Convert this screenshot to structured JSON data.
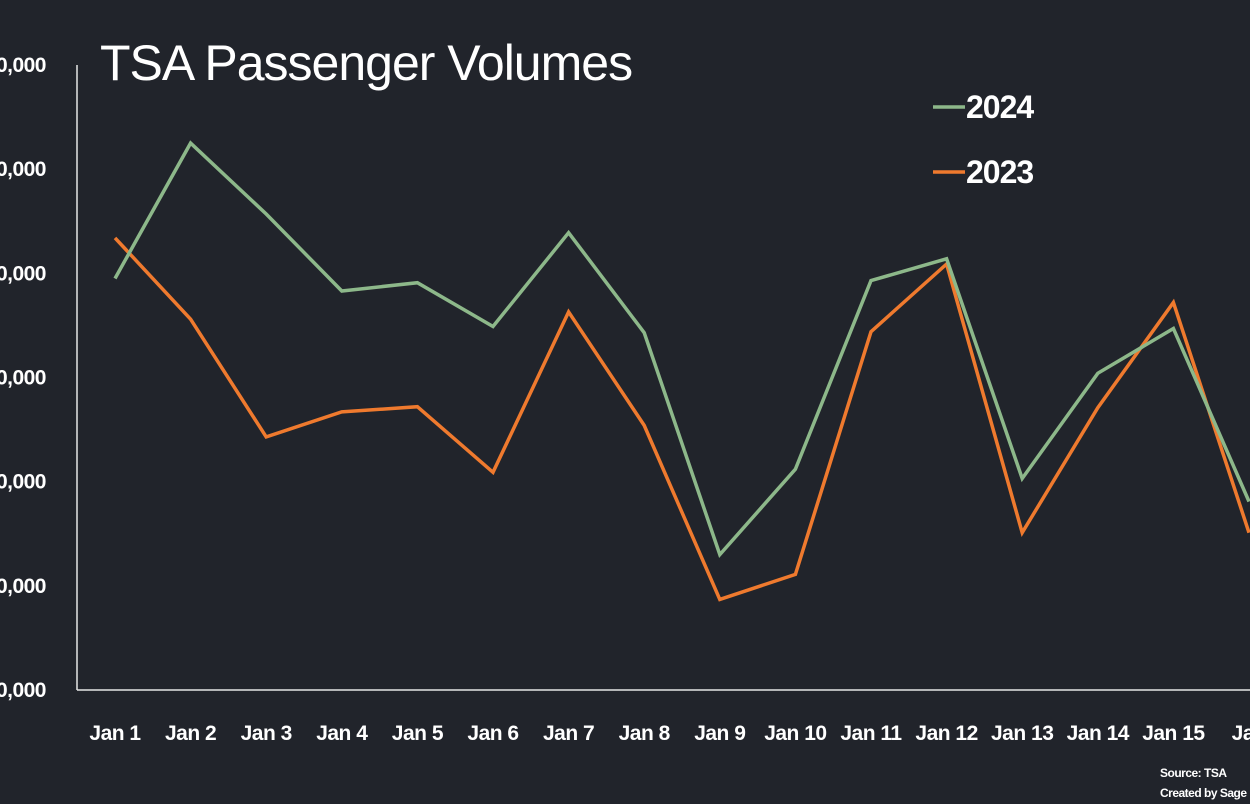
{
  "chart_data": {
    "type": "line",
    "title": "TSA Passenger Volumes",
    "categories": [
      "Jan 1",
      "Jan 2",
      "Jan 3",
      "Jan 4",
      "Jan 5",
      "Jan 6",
      "Jan 7",
      "Jan 8",
      "Jan 9",
      "Jan 10",
      "Jan 11",
      "Jan 12",
      "Jan 13",
      "Jan 14",
      "Jan 15",
      "Jan"
    ],
    "y_tick_labels": [
      "0,000",
      "0,000",
      "0,000",
      "0,000",
      "0,000",
      "0,000",
      "0,000"
    ],
    "ylim": [
      0,
      6
    ],
    "series": [
      {
        "name": "2024",
        "color": "#8db88a",
        "values": [
          3.95,
          5.25,
          4.57,
          3.83,
          3.91,
          3.49,
          4.39,
          3.43,
          1.3,
          2.12,
          3.93,
          4.14,
          2.03,
          3.04,
          3.47,
          1.81
        ]
      },
      {
        "name": "2023",
        "color": "#ef7a2e",
        "values": [
          4.34,
          3.56,
          2.43,
          2.67,
          2.72,
          2.09,
          3.63,
          2.54,
          0.87,
          1.11,
          3.44,
          4.09,
          1.51,
          2.71,
          3.72,
          1.51
        ]
      }
    ],
    "legend": {
      "position": "top-right"
    },
    "grid": false,
    "source_lines": [
      "Source: TSA",
      "Created by Sage Ec"
    ]
  }
}
